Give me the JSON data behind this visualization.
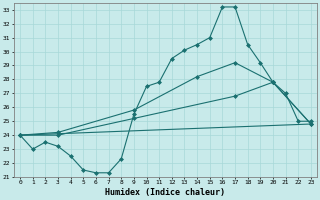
{
  "xlabel": "Humidex (Indice chaleur)",
  "bg_color": "#c8eaea",
  "grid_color": "#a8d8d8",
  "line_color": "#1a7070",
  "xlim": [
    -0.5,
    23.5
  ],
  "ylim": [
    21,
    33.5
  ],
  "yticks": [
    21,
    22,
    23,
    24,
    25,
    26,
    27,
    28,
    29,
    30,
    31,
    32,
    33
  ],
  "xticks": [
    0,
    1,
    2,
    3,
    4,
    5,
    6,
    7,
    8,
    9,
    10,
    11,
    12,
    13,
    14,
    15,
    16,
    17,
    18,
    19,
    20,
    21,
    22,
    23
  ],
  "line1_x": [
    0,
    1,
    2,
    3,
    4,
    5,
    6,
    7,
    8,
    9,
    10,
    11,
    12,
    13,
    14,
    15,
    16,
    17,
    18,
    19,
    20,
    21,
    22,
    23
  ],
  "line1_y": [
    24.0,
    23.0,
    23.5,
    23.2,
    22.5,
    21.5,
    21.3,
    21.3,
    22.3,
    25.5,
    27.5,
    27.8,
    29.5,
    30.1,
    30.5,
    31.0,
    33.2,
    33.2,
    30.5,
    29.2,
    27.8,
    27.0,
    25.0,
    25.0
  ],
  "line2_x": [
    0,
    3,
    9,
    14,
    17,
    20,
    23
  ],
  "line2_y": [
    24.0,
    24.2,
    25.8,
    28.2,
    29.2,
    27.8,
    24.8
  ],
  "line3_x": [
    0,
    3,
    9,
    17,
    20,
    23
  ],
  "line3_y": [
    24.0,
    24.0,
    25.2,
    26.8,
    27.8,
    24.8
  ],
  "line4_x": [
    0,
    23
  ],
  "line4_y": [
    24.0,
    24.8
  ]
}
